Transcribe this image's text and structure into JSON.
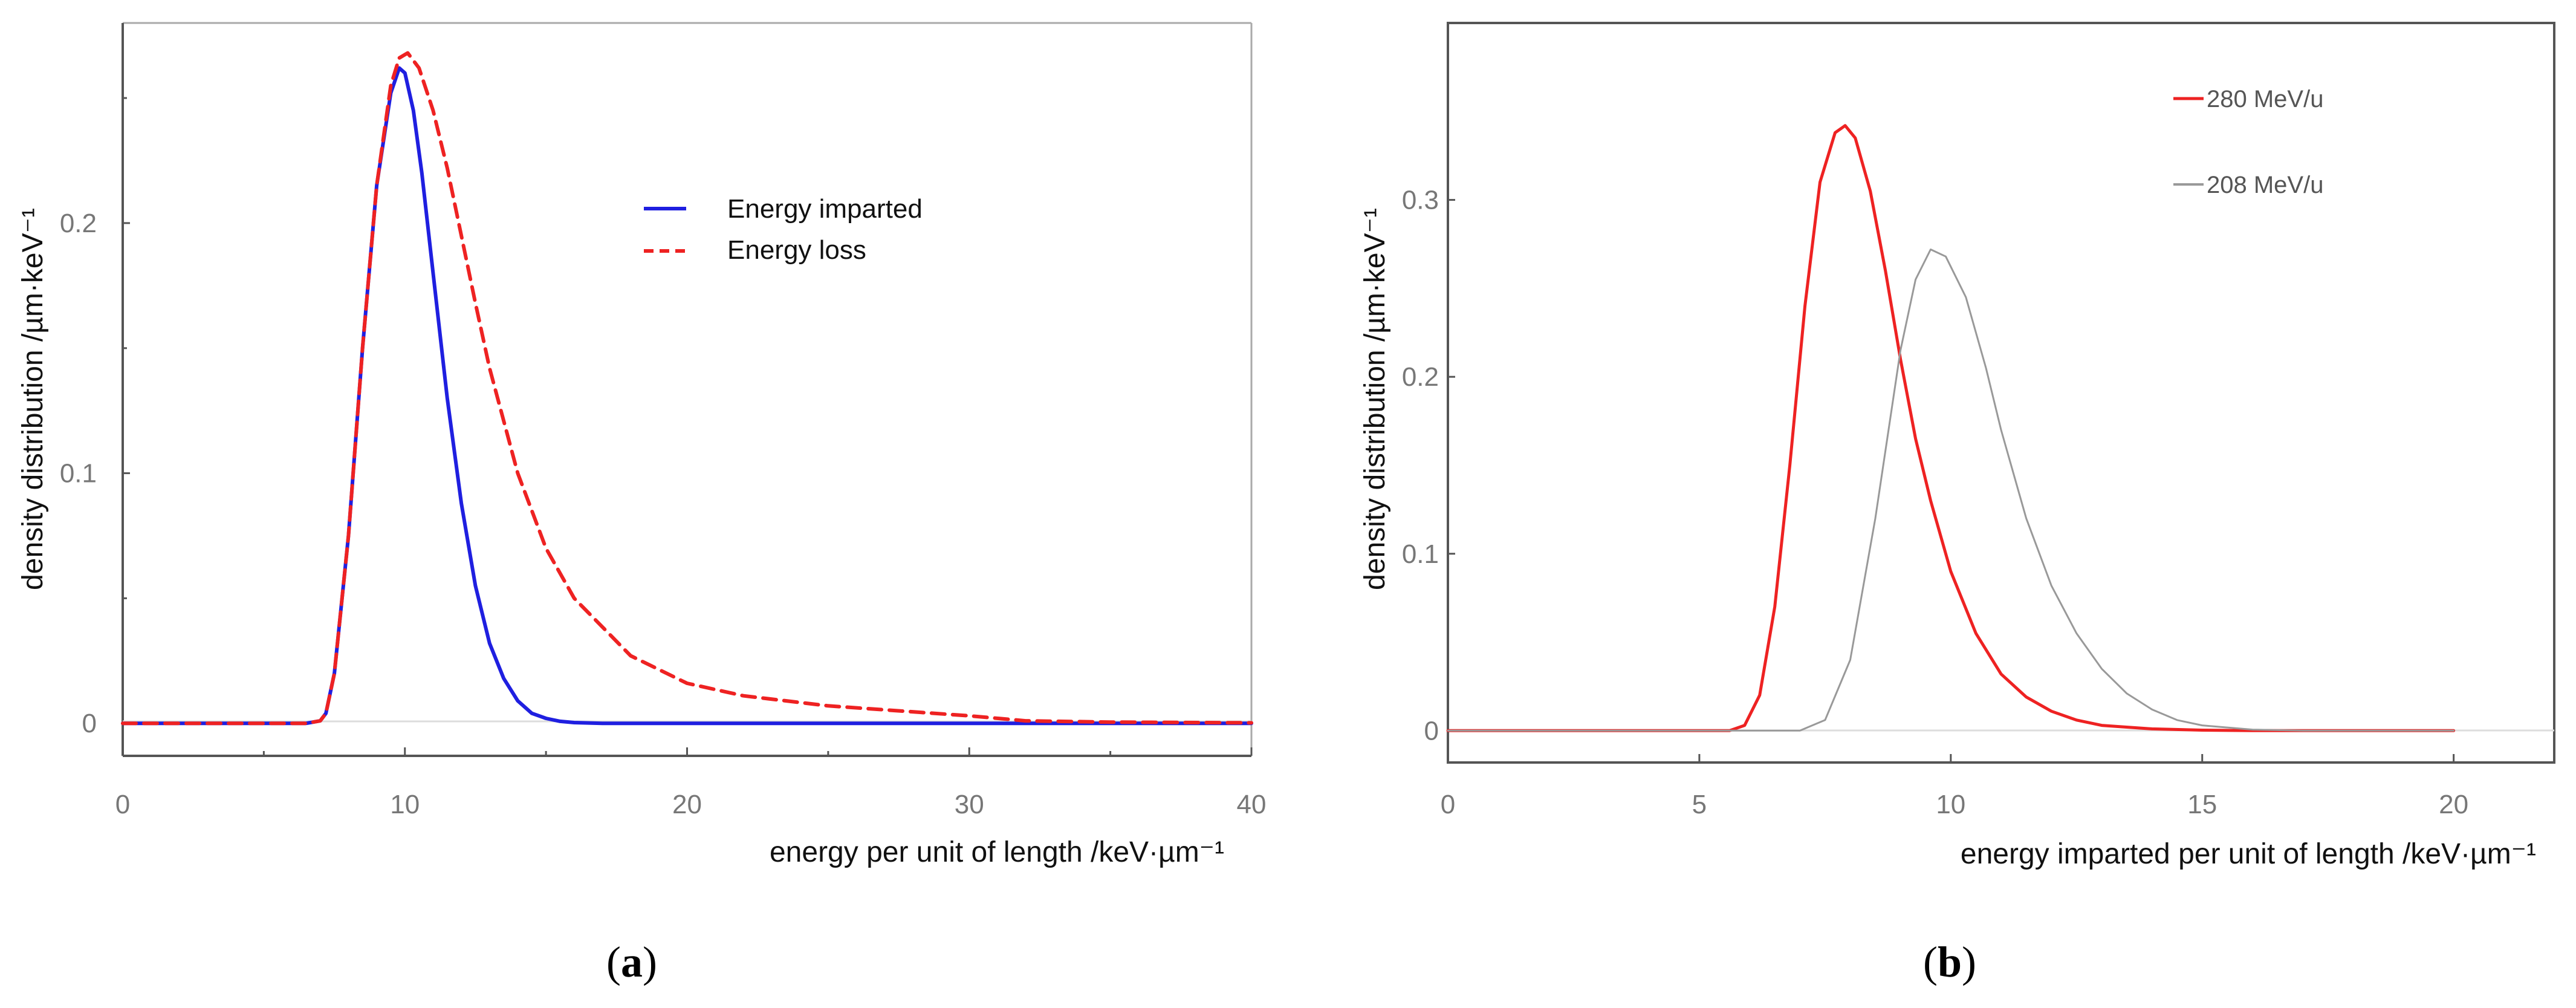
{
  "chart_data": [
    {
      "type": "line",
      "panel_label": "a",
      "xlabel": "energy per unit of length /keV·µm⁻¹",
      "ylabel": "density distribution /µm·keV⁻¹",
      "xlim": [
        0,
        40
      ],
      "ylim": [
        -0.013,
        0.28
      ],
      "x_ticks": [
        "0",
        "10",
        "20",
        "30",
        "40"
      ],
      "y_ticks": [
        "0",
        "0.1",
        "0.2"
      ],
      "legend_position": "upper-right",
      "grid": false,
      "series": [
        {
          "name": "Energy imparted",
          "color": "#1f1fe0",
          "style": "solid",
          "x": [
            0,
            6.5,
            7.0,
            7.2,
            7.5,
            8.0,
            8.5,
            9.0,
            9.5,
            9.8,
            10.0,
            10.3,
            10.6,
            11.0,
            11.5,
            12.0,
            12.5,
            13.0,
            13.5,
            14.0,
            14.5,
            15.0,
            15.5,
            16.0,
            17.0,
            20.0,
            30.0,
            40.0
          ],
          "y": [
            0,
            0,
            0.001,
            0.004,
            0.02,
            0.075,
            0.15,
            0.215,
            0.252,
            0.262,
            0.26,
            0.245,
            0.22,
            0.18,
            0.13,
            0.088,
            0.055,
            0.032,
            0.018,
            0.009,
            0.004,
            0.002,
            0.0008,
            0.0003,
            0,
            0,
            0,
            0
          ]
        },
        {
          "name": "Energy loss",
          "color": "#ee2222",
          "style": "dashed",
          "x": [
            0,
            6.5,
            7.0,
            7.2,
            7.5,
            8.0,
            8.5,
            9.0,
            9.5,
            9.8,
            10.1,
            10.5,
            11.0,
            11.5,
            12.0,
            12.5,
            13.0,
            14.0,
            15.0,
            16.0,
            18.0,
            20.0,
            22.0,
            25.0,
            30.0,
            32.0,
            35.0,
            40.0
          ],
          "y": [
            0,
            0,
            0.001,
            0.004,
            0.02,
            0.075,
            0.15,
            0.215,
            0.255,
            0.266,
            0.268,
            0.262,
            0.245,
            0.222,
            0.195,
            0.168,
            0.142,
            0.1,
            0.07,
            0.05,
            0.027,
            0.016,
            0.011,
            0.007,
            0.003,
            0.001,
            0.0005,
            0.0002
          ]
        }
      ]
    },
    {
      "type": "line",
      "panel_label": "b",
      "xlabel": "energy imparted per unit of length /keV·µm⁻¹",
      "ylabel": "density distribution /µm·keV⁻¹",
      "xlim": [
        0,
        22
      ],
      "ylim": [
        -0.018,
        0.4
      ],
      "x_ticks": [
        "0",
        "5",
        "10",
        "15",
        "20"
      ],
      "y_ticks": [
        "0",
        "0.1",
        "0.2",
        "0.3"
      ],
      "legend_position": "upper-right",
      "grid": false,
      "series": [
        {
          "name": "280 MeV/u",
          "color": "#ee2222",
          "style": "solid",
          "x": [
            0,
            5.6,
            5.9,
            6.2,
            6.5,
            6.8,
            7.1,
            7.4,
            7.7,
            7.9,
            8.1,
            8.4,
            8.7,
            9.0,
            9.3,
            9.6,
            10.0,
            10.5,
            11.0,
            11.5,
            12.0,
            12.5,
            13.0,
            14.0,
            15.0,
            16.0,
            20.0
          ],
          "y": [
            0,
            0,
            0.003,
            0.02,
            0.07,
            0.15,
            0.24,
            0.31,
            0.338,
            0.342,
            0.335,
            0.305,
            0.26,
            0.21,
            0.165,
            0.13,
            0.09,
            0.055,
            0.032,
            0.019,
            0.011,
            0.006,
            0.003,
            0.001,
            0.0003,
            0,
            0
          ]
        },
        {
          "name": "208 MeV/u",
          "color": "#999999",
          "style": "solid",
          "x": [
            0,
            7.0,
            7.5,
            8.0,
            8.5,
            9.0,
            9.3,
            9.6,
            9.9,
            10.3,
            10.7,
            11.0,
            11.5,
            12.0,
            12.5,
            13.0,
            13.5,
            14.0,
            14.5,
            15.0,
            16.0,
            17.0,
            20.0
          ],
          "y": [
            0,
            0,
            0.006,
            0.04,
            0.12,
            0.215,
            0.255,
            0.272,
            0.268,
            0.245,
            0.205,
            0.17,
            0.12,
            0.082,
            0.055,
            0.035,
            0.021,
            0.012,
            0.006,
            0.003,
            0.0006,
            0,
            0
          ]
        }
      ]
    }
  ]
}
